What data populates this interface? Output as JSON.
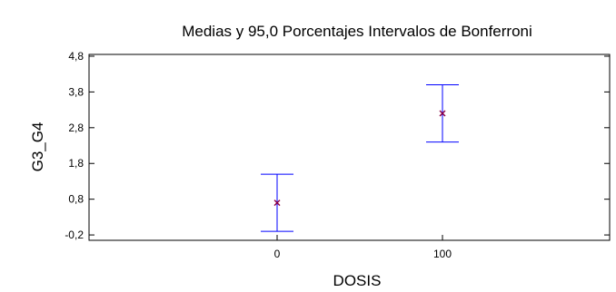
{
  "chart_data": {
    "type": "scatter",
    "title": "Medias y 95,0 Porcentajes Intervalos de Bonferroni",
    "xlabel": "DOSIS",
    "ylabel": "G3_G4",
    "categories": [
      "0",
      "100"
    ],
    "series": [
      {
        "means": [
          0.7,
          3.2
        ],
        "lower": [
          -0.1,
          2.4
        ],
        "upper": [
          1.5,
          4.0
        ]
      }
    ],
    "y_ticks": [
      "-0,2",
      "0,8",
      "1,8",
      "2,8",
      "3,8",
      "4,8"
    ],
    "y_tick_values": [
      -0.2,
      0.8,
      1.8,
      2.8,
      3.8,
      4.8
    ],
    "ylim": [
      -0.35,
      4.85
    ],
    "grid": false,
    "colors": {
      "interval": "#0000ff",
      "mean_marker": "#8b0045"
    }
  }
}
